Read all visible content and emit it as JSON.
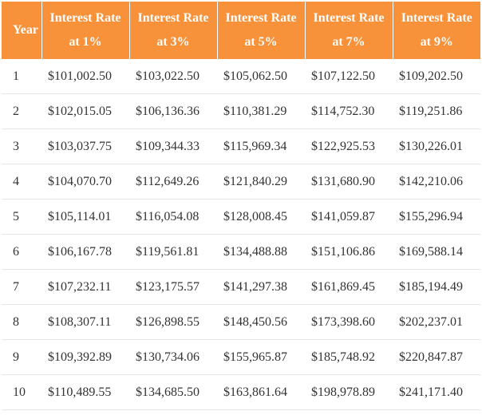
{
  "table": {
    "headers": [
      {
        "line1": "Year",
        "line2": ""
      },
      {
        "line1": "Interest Rate",
        "line2": "at 1%"
      },
      {
        "line1": "Interest Rate",
        "line2": "at 3%"
      },
      {
        "line1": "Interest Rate",
        "line2": "at 5%"
      },
      {
        "line1": "Interest Rate",
        "line2": "at 7%"
      },
      {
        "line1": "Interest Rate",
        "line2": "at 9%"
      }
    ],
    "rows": [
      [
        "1",
        "$101,002.50",
        "$103,022.50",
        "$105,062.50",
        "$107,122.50",
        "$109,202.50"
      ],
      [
        "2",
        "$102,015.05",
        "$106,136.36",
        "$110,381.29",
        "$114,752.30",
        "$119,251.86"
      ],
      [
        "3",
        "$103,037.75",
        "$109,344.33",
        "$115,969.34",
        "$122,925.53",
        "$130,226.01"
      ],
      [
        "4",
        "$104,070.70",
        "$112,649.26",
        "$121,840.29",
        "$131,680.90",
        "$142,210.06"
      ],
      [
        "5",
        "$105,114.01",
        "$116,054.08",
        "$128,008.45",
        "$141,059.87",
        "$155,296.94"
      ],
      [
        "6",
        "$106,167.78",
        "$119,561.81",
        "$134,488.88",
        "$151,106.86",
        "$169,588.14"
      ],
      [
        "7",
        "$107,232.11",
        "$123,175.57",
        "$141,297.38",
        "$161,869.45",
        "$185,194.49"
      ],
      [
        "8",
        "$108,307.11",
        "$126,898.55",
        "$148,450.56",
        "$173,398.60",
        "$202,237.01"
      ],
      [
        "9",
        "$109,392.89",
        "$130,734.06",
        "$155,965.87",
        "$185,748.92",
        "$220,847.87"
      ],
      [
        "10",
        "$110,489.55",
        "$134,685.50",
        "$163,861.64",
        "$198,978.89",
        "$241,171.40"
      ]
    ]
  },
  "colors": {
    "header_background": "#f7923a",
    "header_text": "#ffffff",
    "body_text": "#333333",
    "row_divider": "#e6e6e6"
  }
}
